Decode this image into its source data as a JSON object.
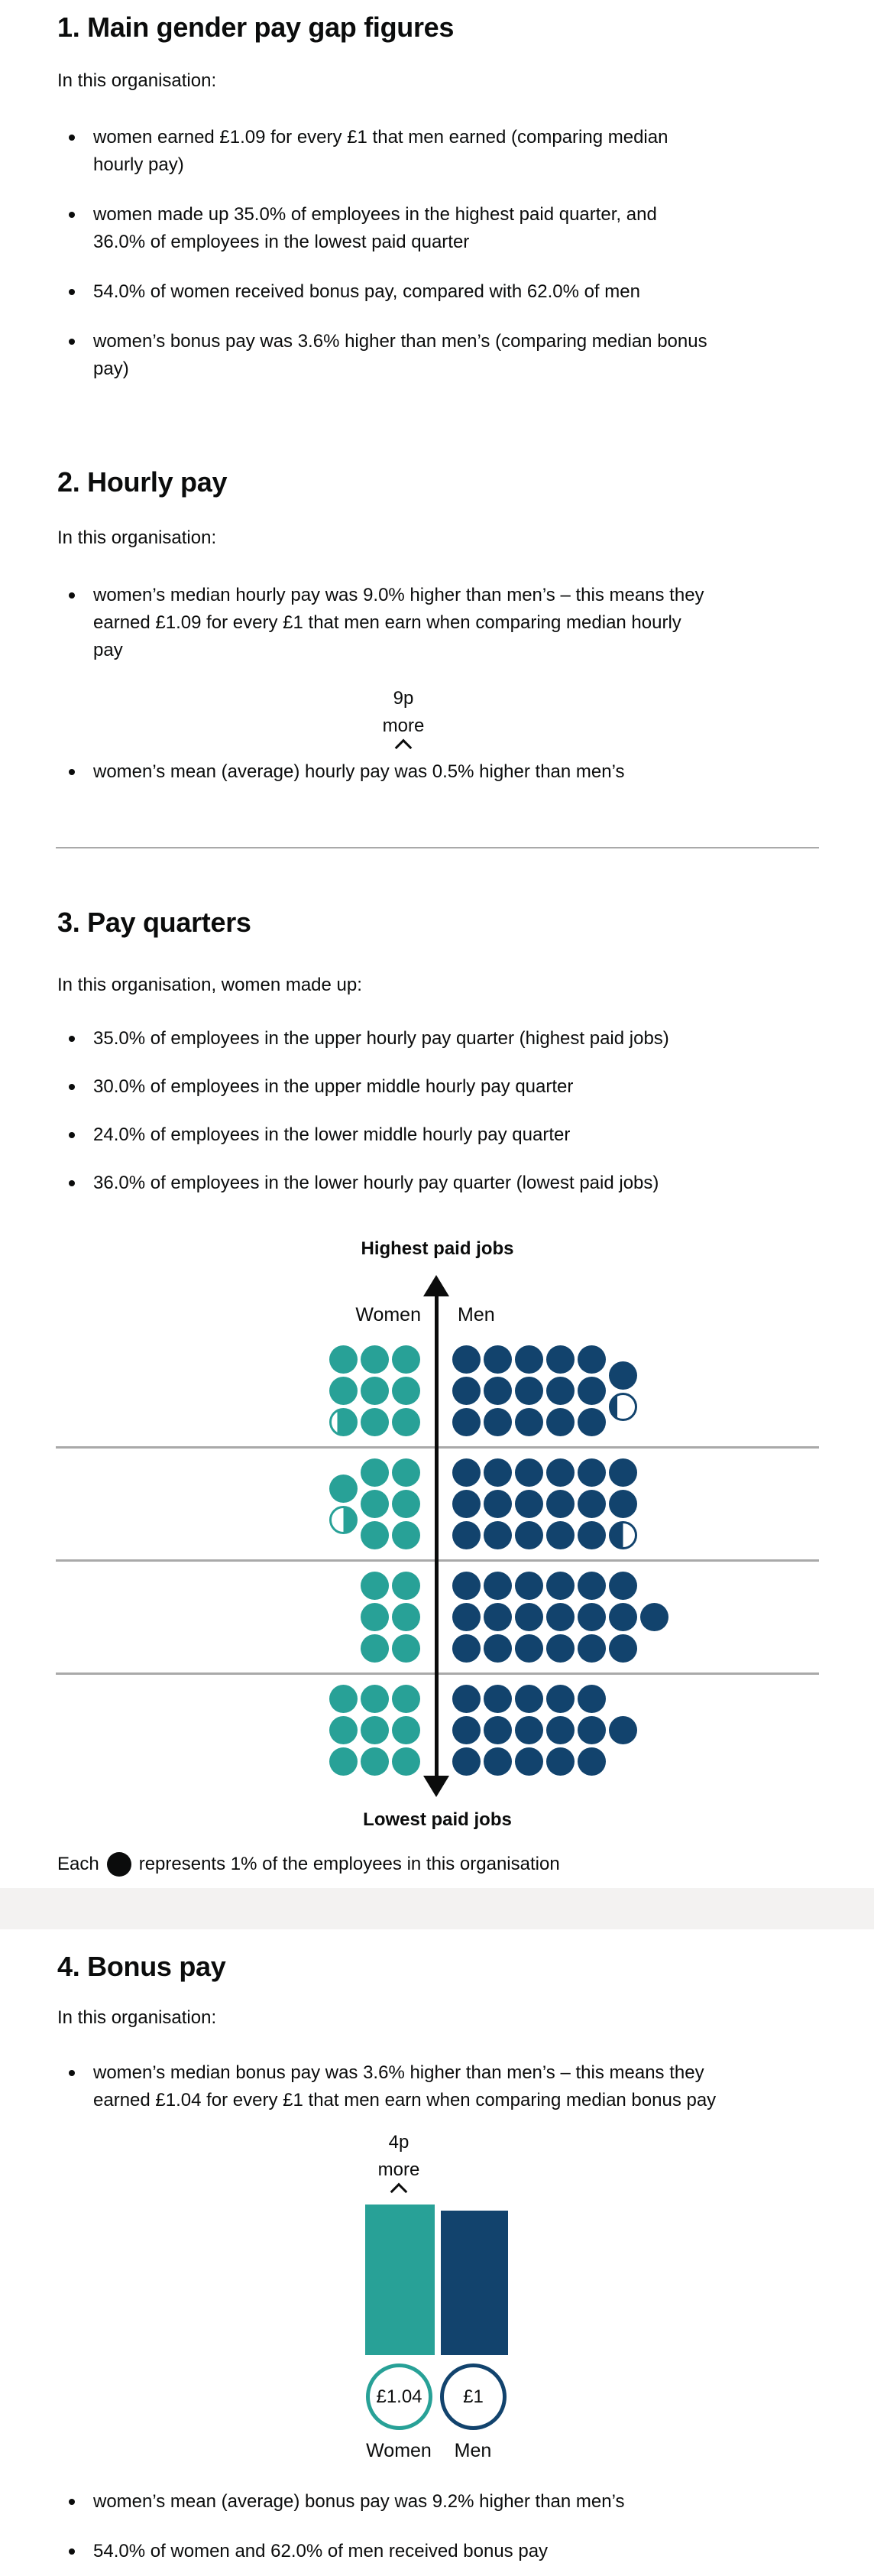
{
  "colors": {
    "women": "#28a197",
    "men": "#12436d",
    "text": "#0b0c0c",
    "separator": "#a9a9a9",
    "band": "#f3f2f1",
    "hr": "#a9a9a9"
  },
  "section1": {
    "heading": "1. Main gender pay gap figures",
    "intro": "In this organisation:",
    "bullets": [
      "women earned £1.09 for every £1 that men earned (comparing median\nhourly pay)",
      "women made up 35.0% of employees in the highest paid quarter, and\n36.0% of employees in the lowest paid quarter",
      "54.0% of women received bonus pay, compared with 62.0% of men",
      "women’s bonus pay was 3.6% higher than men’s (comparing median bonus\npay)"
    ]
  },
  "section2": {
    "heading": "2. Hourly pay",
    "intro": "In this organisation:",
    "bullet_median": "women’s median hourly pay was 9.0% higher than men’s – this means they\nearned £1.09 for every £1 that men earn when comparing median hourly\npay",
    "annotation": "9p\nmore",
    "bullet_mean": "women’s mean (average) hourly pay was 0.5% higher than men’s"
  },
  "section3": {
    "heading": "3. Pay quarters",
    "intro": "In this organisation, women made up:",
    "bullets": [
      "35.0% of employees in the upper hourly pay quarter (highest paid jobs)",
      "30.0% of employees in the upper middle hourly pay quarter",
      "24.0% of employees in the lower middle hourly pay quarter",
      "36.0% of employees in the lower hourly pay quarter (lowest paid jobs)"
    ],
    "chart": {
      "top_label": "Highest paid jobs",
      "bottom_label": "Lowest paid jobs",
      "left_series": "Women",
      "right_series": "Men",
      "caption_prefix": "Each",
      "caption_suffix": "represents 1% of the employees in this organisation",
      "quarters": [
        {
          "key": "upper",
          "women_pct": 35.0,
          "men_pct": 65.0,
          "women_dots": 8.75,
          "men_dots": 16.25
        },
        {
          "key": "upper-middle",
          "women_pct": 30.0,
          "men_pct": 70.0,
          "women_dots": 7.5,
          "men_dots": 17.5
        },
        {
          "key": "lower-middle",
          "women_pct": 24.0,
          "men_pct": 76.0,
          "women_dots": 6,
          "men_dots": 19
        },
        {
          "key": "lower",
          "women_pct": 36.0,
          "men_pct": 64.0,
          "women_dots": 9,
          "men_dots": 16
        }
      ]
    }
  },
  "section4": {
    "heading": "4. Bonus pay",
    "intro": "In this organisation:",
    "bullet_median": "women’s median bonus pay was 3.6% higher than men’s – this means they\nearned £1.04 for every £1 that men earn when comparing median bonus pay",
    "annotation": "4p\nmore",
    "bar_chart": {
      "women_value": "£1.04",
      "men_value": "£1",
      "women_label": "Women",
      "men_label": "Men",
      "ratio_women_per_men": 1.04
    },
    "bullets_after": [
      "women’s mean (average) bonus pay was 9.2% higher than men’s",
      "54.0% of women and 62.0% of men received bonus pay"
    ]
  },
  "chart_data": [
    {
      "type": "icon-array",
      "title": "Pay quarters: percentage of women and men in each hourly pay quarter",
      "unit": "Each dot represents 1% of the employees in this organisation (25 dots per quarter)",
      "axis_top": "Highest paid jobs",
      "axis_bottom": "Lowest paid jobs",
      "series": [
        "Women",
        "Men"
      ],
      "quarters": [
        {
          "quarter": "upper",
          "women": 35.0,
          "men": 65.0
        },
        {
          "quarter": "upper middle",
          "women": 30.0,
          "men": 70.0
        },
        {
          "quarter": "lower middle",
          "women": 24.0,
          "men": 76.0
        },
        {
          "quarter": "lower",
          "women": 36.0,
          "men": 64.0
        }
      ],
      "legend_position": "below"
    },
    {
      "type": "bar",
      "categories": [
        "Women",
        "Men"
      ],
      "values": [
        1.04,
        1.0
      ],
      "value_labels": [
        "£1.04",
        "£1"
      ],
      "annotation": "4p more",
      "title": "Median bonus pay comparison"
    }
  ]
}
